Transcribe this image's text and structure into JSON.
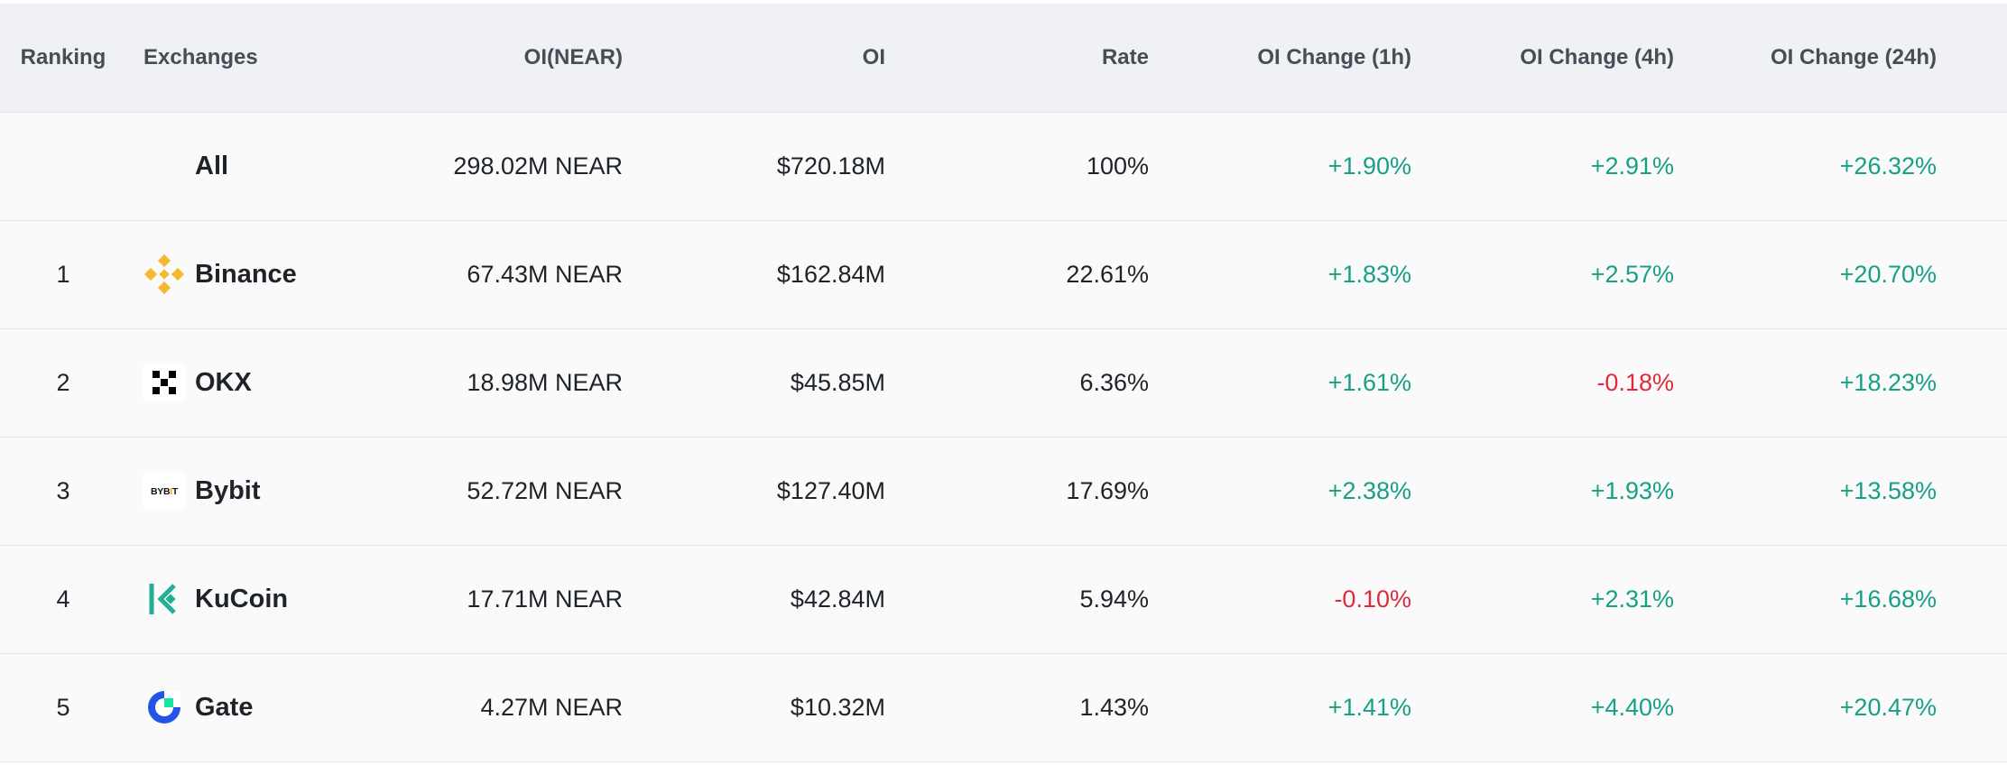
{
  "headers": {
    "ranking": "Ranking",
    "exchanges": "Exchanges",
    "oi_near": "OI(NEAR)",
    "oi": "OI",
    "rate": "Rate",
    "change_1h": "OI Change (1h)",
    "change_4h": "OI Change (4h)",
    "change_24h": "OI Change (24h)"
  },
  "all_row": {
    "ranking": "",
    "exchange": "All",
    "oi_near": "298.02M NEAR",
    "oi": "$720.18M",
    "rate": "100%",
    "change_1h": "+1.90%",
    "change_4h": "+2.91%",
    "change_24h": "+26.32%"
  },
  "rows": [
    {
      "ranking": "1",
      "exchange": "Binance",
      "icon": "binance-logo-icon",
      "oi_near": "67.43M NEAR",
      "oi": "$162.84M",
      "rate": "22.61%",
      "change_1h": "+1.83%",
      "change_4h": "+2.57%",
      "change_24h": "+20.70%"
    },
    {
      "ranking": "2",
      "exchange": "OKX",
      "icon": "okx-logo-icon",
      "oi_near": "18.98M NEAR",
      "oi": "$45.85M",
      "rate": "6.36%",
      "change_1h": "+1.61%",
      "change_4h": "-0.18%",
      "change_24h": "+18.23%"
    },
    {
      "ranking": "3",
      "exchange": "Bybit",
      "icon": "bybit-logo-icon",
      "logo_text": "BYBIT",
      "oi_near": "52.72M NEAR",
      "oi": "$127.40M",
      "rate": "17.69%",
      "change_1h": "+2.38%",
      "change_4h": "+1.93%",
      "change_24h": "+13.58%"
    },
    {
      "ranking": "4",
      "exchange": "KuCoin",
      "icon": "kucoin-logo-icon",
      "oi_near": "17.71M NEAR",
      "oi": "$42.84M",
      "rate": "5.94%",
      "change_1h": "-0.10%",
      "change_4h": "+2.31%",
      "change_24h": "+16.68%"
    },
    {
      "ranking": "5",
      "exchange": "Gate",
      "icon": "gate-logo-icon",
      "oi_near": "4.27M NEAR",
      "oi": "$10.32M",
      "rate": "1.43%",
      "change_1h": "+1.41%",
      "change_4h": "+4.40%",
      "change_24h": "+20.47%"
    }
  ],
  "colors": {
    "positive": "#16a085",
    "negative": "#e0293a",
    "header_bg": "#f0f1f5",
    "row_bg": "#fafafa",
    "binance": "#f3ba2f",
    "kucoin": "#23af91",
    "gate_blue": "#2354e6",
    "gate_green": "#17e6a1"
  }
}
